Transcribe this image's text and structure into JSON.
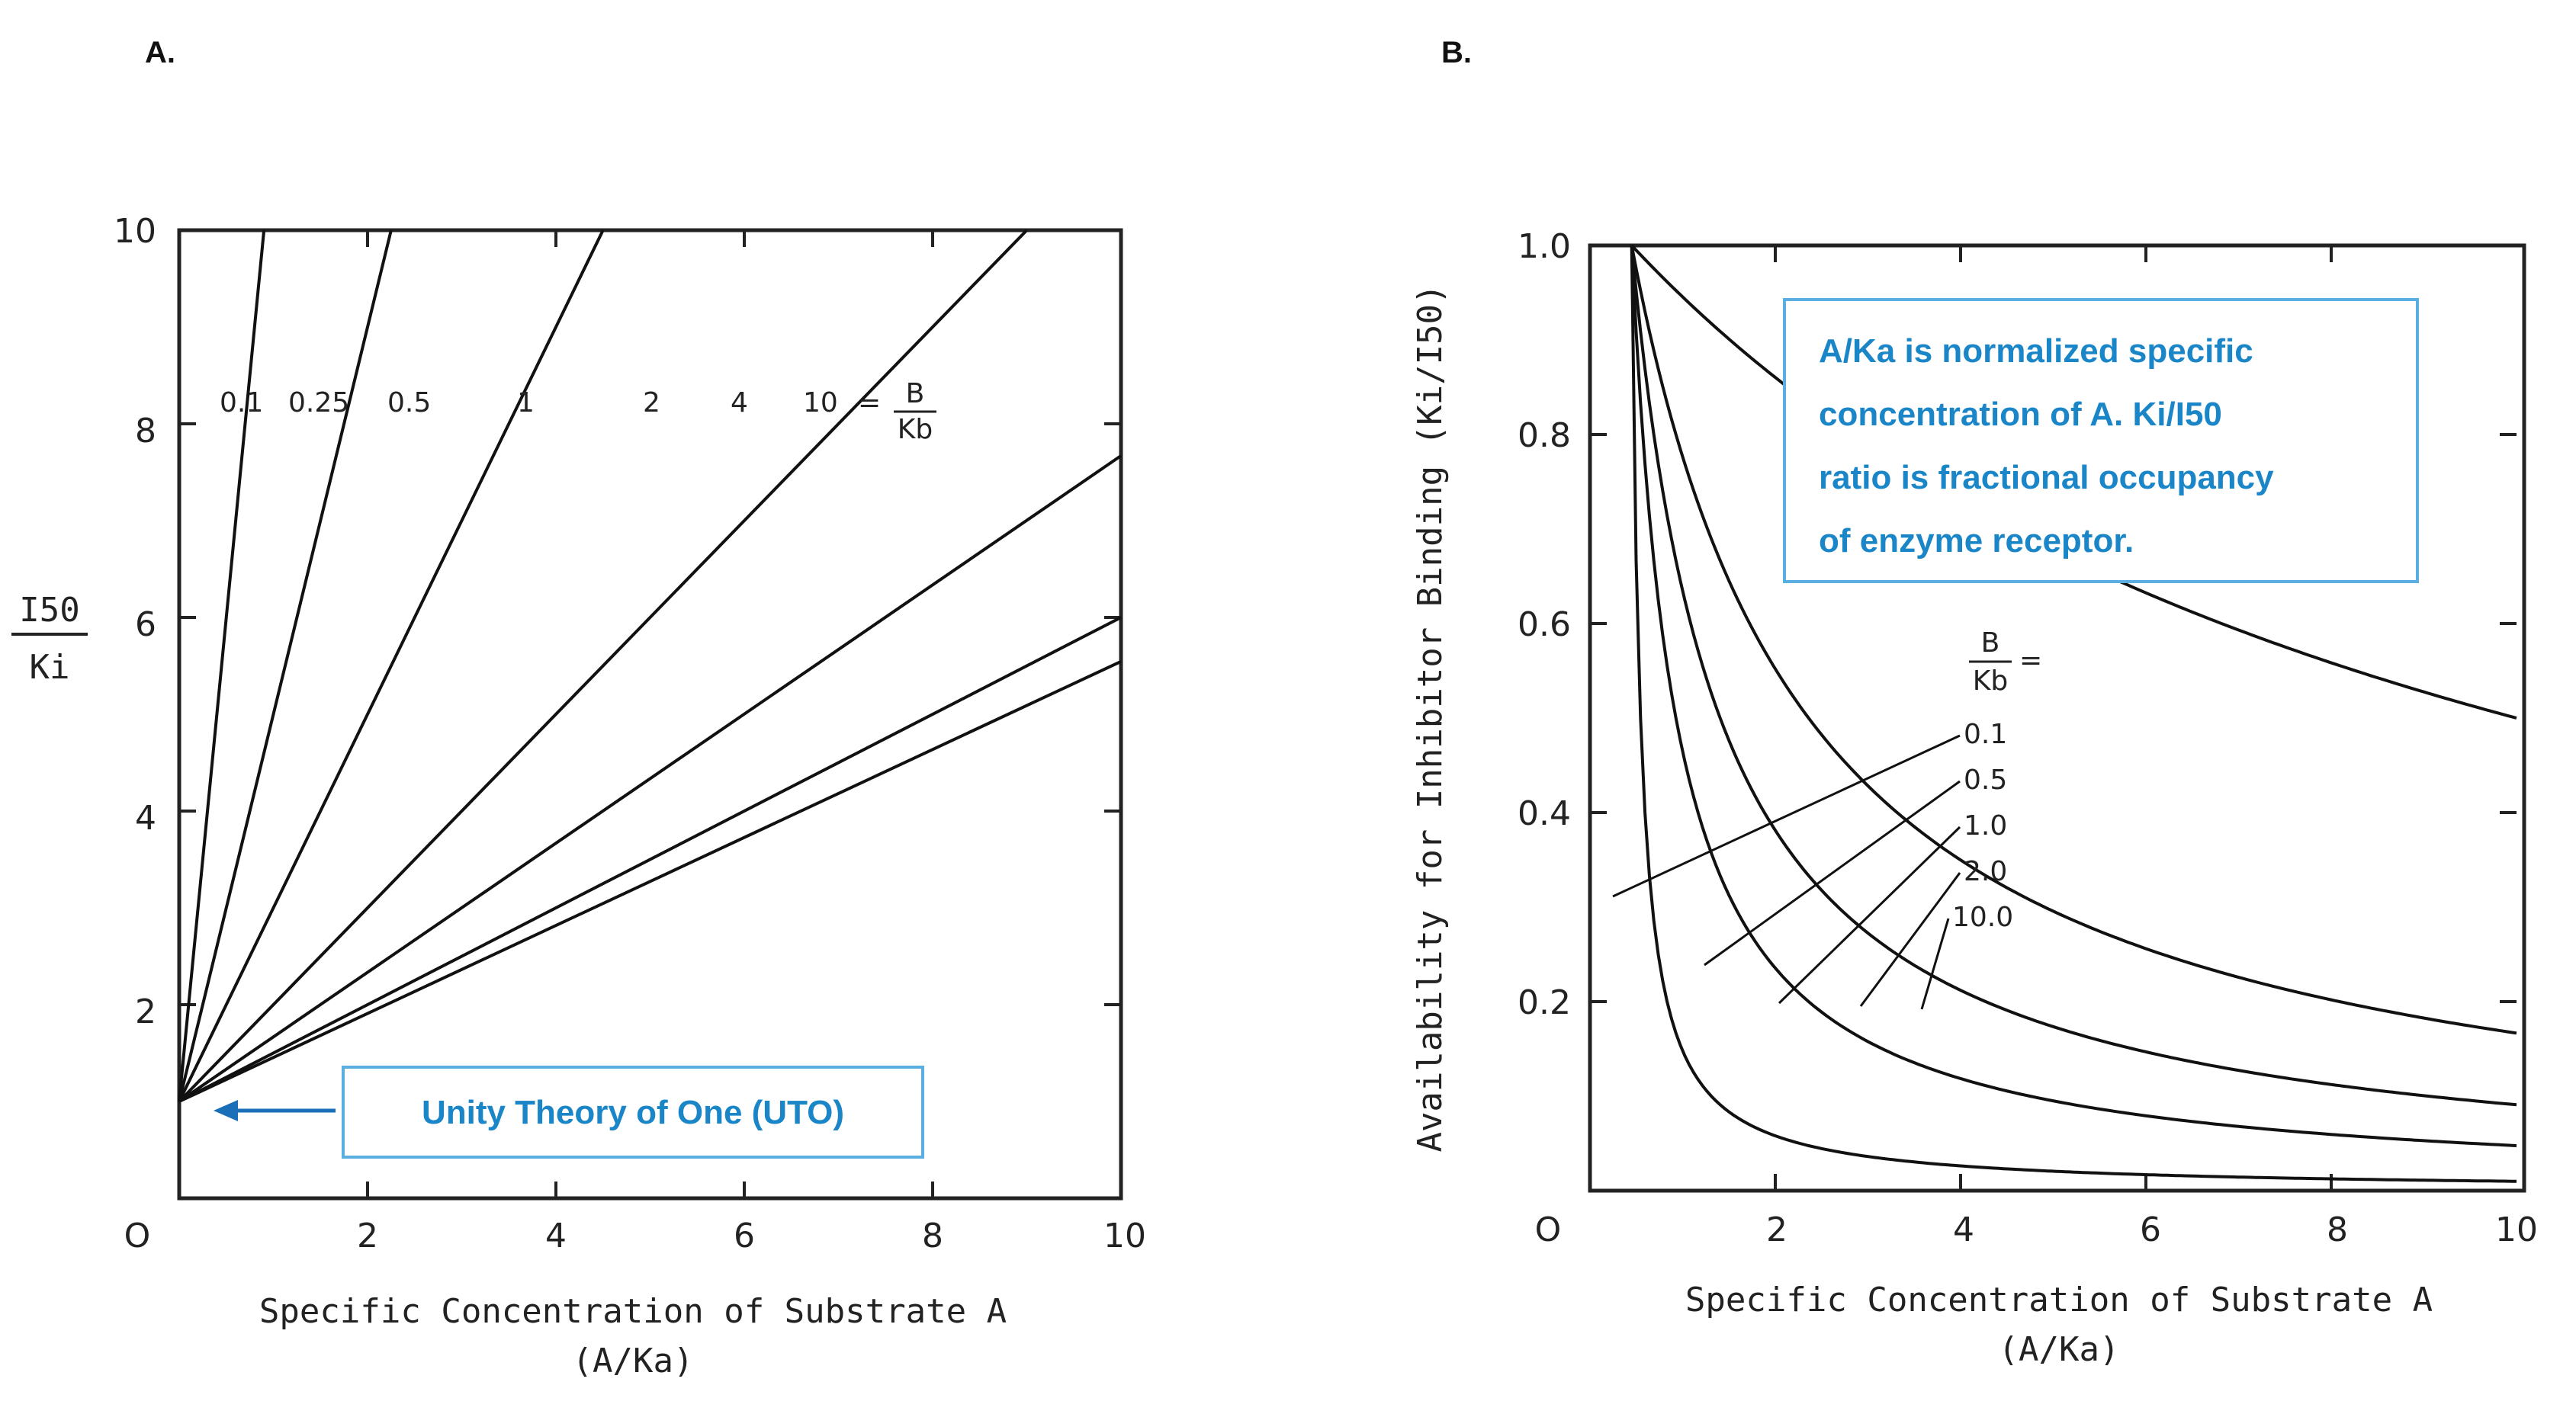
{
  "panels": {
    "a_label": "A.",
    "b_label": "B."
  },
  "chart_a": {
    "y_title_num": "I50",
    "y_title_den": "Ki",
    "x_title_line1": "Specific Concentration of Substrate A",
    "x_title_line2": "(A/Ka)",
    "origin_label": "O",
    "x_ticks": [
      "2",
      "4",
      "6",
      "8",
      "10"
    ],
    "y_ticks": [
      "2",
      "4",
      "6",
      "8",
      "10"
    ],
    "curve_labels": [
      "0.1",
      "0.25",
      "0.5",
      "1",
      "2",
      "4",
      "10"
    ],
    "ratio_label_num": "B",
    "ratio_label_den": "Kb",
    "ratio_label_eq": "=",
    "annotation": "Unity Theory of One (UTO)"
  },
  "chart_b": {
    "y_title": "Availability for Inhibitor Binding (Ki/I50)",
    "x_title_line1": "Specific Concentration of Substrate A",
    "x_title_line2": "(A/Ka)",
    "origin_label": "O",
    "x_ticks": [
      "2",
      "4",
      "6",
      "8",
      "10"
    ],
    "y_ticks": [
      "0.2",
      "0.4",
      "0.6",
      "0.8",
      "1.0"
    ],
    "legend_title_num": "B",
    "legend_title_den": "Kb",
    "legend_title_eq": "=",
    "legend_items": [
      "0.1",
      "0.5",
      "1.0",
      "2.0",
      "10.0"
    ],
    "note_lines": [
      "A/Ka is normalized specific",
      "concentration of A. Ki/I50",
      "ratio is fractional occupancy",
      "of enzyme receptor."
    ]
  },
  "chart_data": [
    {
      "type": "line",
      "title": "",
      "xlabel": "Specific Concentration of Substrate A (A/Ka)",
      "ylabel": "I50/Ki",
      "xlim": [
        0,
        10
      ],
      "ylim": [
        0,
        10
      ],
      "x": [
        0,
        10
      ],
      "series": [
        {
          "name": "0.1",
          "slope": 10
        },
        {
          "name": "0.25",
          "slope": 4
        },
        {
          "name": "0.5",
          "slope": 2
        },
        {
          "name": "1",
          "slope": 1
        },
        {
          "name": "2",
          "slope": 0.667
        },
        {
          "name": "4",
          "slope": 0.5
        },
        {
          "name": "10",
          "slope": 0.4545
        }
      ],
      "intercept": 1
    },
    {
      "type": "line",
      "title": "",
      "xlabel": "Specific Concentration of Substrate A (A/Ka)",
      "ylabel": "Availability for Inhibitor Binding (Ki/I50)",
      "xlim": [
        0,
        10
      ],
      "ylim": [
        0,
        1.0
      ],
      "x": [
        0,
        0.2,
        0.5,
        1,
        2,
        4,
        6,
        8,
        10
      ],
      "series": [
        {
          "name": "0.1",
          "values": [
            1.0,
            0.333,
            0.167,
            0.091,
            0.048,
            0.024,
            0.016,
            0.012,
            0.01
          ]
        },
        {
          "name": "0.5",
          "values": [
            1.0,
            0.882,
            0.75,
            0.6,
            0.429,
            0.273,
            0.2,
            0.158,
            0.13
          ]
        },
        {
          "name": "1.0",
          "values": [
            1.0,
            0.909,
            0.8,
            0.667,
            0.5,
            0.333,
            0.25,
            0.2,
            0.167
          ]
        },
        {
          "name": "2.0",
          "values": [
            1.0,
            0.938,
            0.857,
            0.75,
            0.6,
            0.429,
            0.333,
            0.273,
            0.231
          ]
        },
        {
          "name": "10.0",
          "values": [
            1.0,
            0.982,
            0.957,
            0.917,
            0.846,
            0.733,
            0.647,
            0.579,
            0.524
          ]
        }
      ]
    }
  ]
}
